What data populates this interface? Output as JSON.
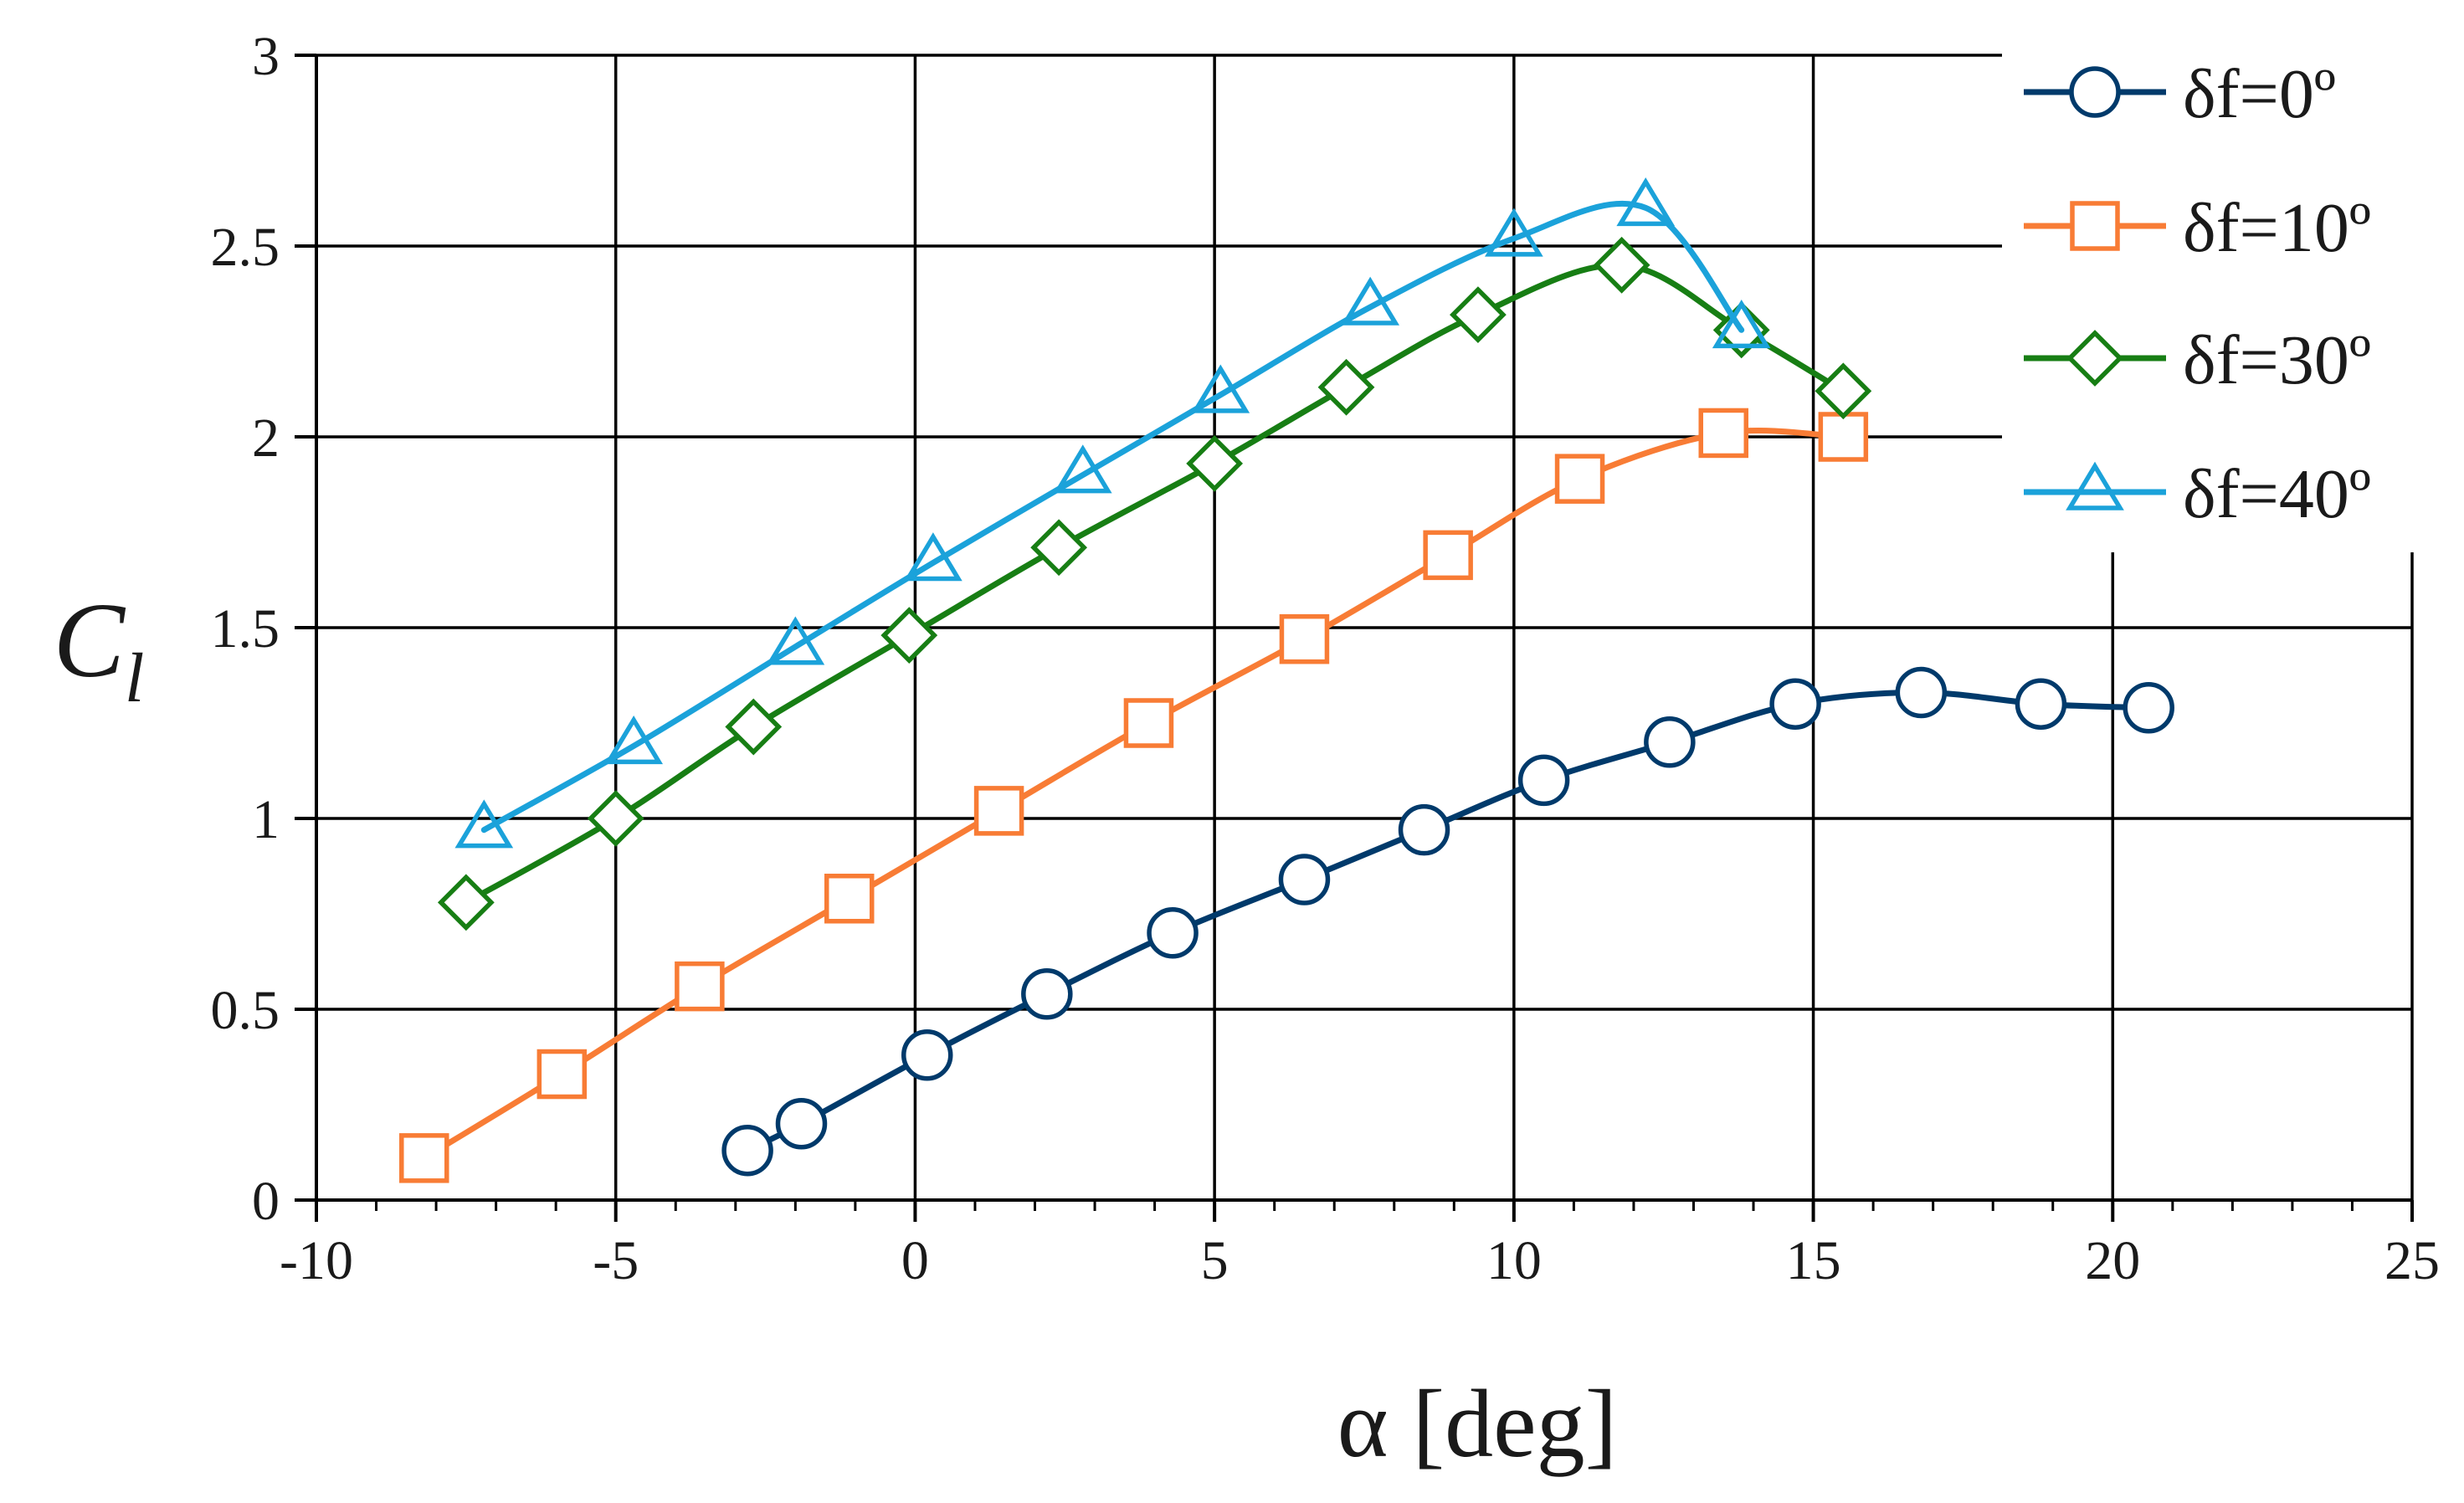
{
  "chart_data": {
    "type": "line",
    "title": "",
    "xlabel": "α [deg]",
    "ylabel": "C",
    "ylabel_subscript": "l",
    "xlim": [
      -10,
      25
    ],
    "ylim": [
      0,
      3
    ],
    "x_ticks": [
      "-10",
      "-5",
      "0",
      "5",
      "10",
      "15",
      "20",
      "25"
    ],
    "y_ticks": [
      "0",
      "0.5",
      "1",
      "1.5",
      "2",
      "2.5",
      "3"
    ],
    "x_minor_step": 1,
    "grid": true,
    "legend": "top-right",
    "series": [
      {
        "name": "δf=0º",
        "color": "#003a6b",
        "marker": "circle",
        "x": [
          -2.8,
          -1.9,
          0.2,
          2.2,
          4.3,
          6.5,
          8.5,
          10.5,
          12.6,
          14.7,
          16.8,
          18.8,
          20.6
        ],
        "y": [
          0.13,
          0.2,
          0.38,
          0.54,
          0.7,
          0.84,
          0.97,
          1.1,
          1.2,
          1.3,
          1.33,
          1.3,
          1.29
        ]
      },
      {
        "name": "δf=10º",
        "color": "#f87c35",
        "marker": "square",
        "x": [
          -8.2,
          -5.9,
          -3.6,
          -1.1,
          1.4,
          3.9,
          6.5,
          8.9,
          11.1,
          13.5,
          15.5
        ],
        "y": [
          0.11,
          0.33,
          0.56,
          0.79,
          1.02,
          1.25,
          1.47,
          1.69,
          1.89,
          2.01,
          2.0
        ]
      },
      {
        "name": "δf=30º",
        "color": "#177e14",
        "marker": "diamond",
        "x": [
          -7.5,
          -5.0,
          -2.7,
          -0.1,
          2.4,
          5.0,
          7.2,
          9.4,
          11.8,
          13.8,
          15.5
        ],
        "y": [
          0.78,
          1.0,
          1.24,
          1.48,
          1.71,
          1.93,
          2.13,
          2.32,
          2.45,
          2.28,
          2.12
        ]
      },
      {
        "name": "δf=40º",
        "color": "#1ba2da",
        "marker": "triangle",
        "x": [
          -7.2,
          -4.7,
          -2.0,
          0.3,
          2.8,
          5.1,
          7.6,
          10.0,
          12.2,
          13.8
        ],
        "y": [
          0.97,
          1.19,
          1.45,
          1.67,
          1.9,
          2.11,
          2.34,
          2.52,
          2.6,
          2.28
        ]
      }
    ]
  }
}
